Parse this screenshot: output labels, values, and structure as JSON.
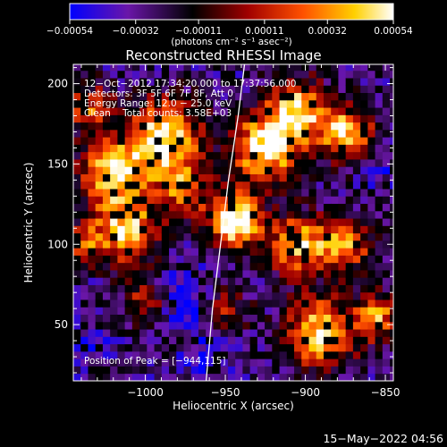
{
  "chart_data": {
    "type": "heatmap",
    "title": "Reconstructed RHESSI Image",
    "xlabel": "Heliocentric X (arcsec)",
    "ylabel": "Heliocentric Y (arcsec)",
    "xlim": [
      -1045,
      -845
    ],
    "ylim": [
      15,
      212
    ],
    "xticks": [
      -1000,
      -950,
      -900,
      -850
    ],
    "xtick_labels": [
      "−1000",
      "−950",
      "−900",
      "−850"
    ],
    "yticks": [
      50,
      100,
      150,
      200
    ],
    "ytick_labels": [
      "50",
      "100",
      "150",
      "200"
    ],
    "colorbar": {
      "ticks": [
        -0.00054,
        -0.00032,
        -0.00011,
        0.00011,
        0.00032,
        0.00054
      ],
      "tick_labels": [
        "−0.00054",
        "−0.00032",
        "−0.00011",
        "0.00011",
        "0.00032",
        "0.00054"
      ],
      "unit_label": "(photons cm⁻² s⁻¹ asec⁻²)",
      "range": [
        -0.00054,
        0.00054
      ],
      "colors": [
        "#0000ff",
        "#6a16a8",
        "#000000",
        "#a00000",
        "#ff5000",
        "#ffd000",
        "#ffffff"
      ]
    },
    "annotations": [
      "12−Oct−2012 17:34:20.000 to 17:37:56.000",
      "Detectors: 3F 5F 6F 7F 8F, Att 0",
      "Energy Range: 12.0 − 25.0 keV",
      "Clean    Total counts: 3.58E+03"
    ],
    "peak_label": "Position of Peak = [−944,115]",
    "peak": {
      "x": -944,
      "y": 115
    },
    "limb_curve": [
      [
        -962,
        15
      ],
      [
        -958,
        60
      ],
      [
        -953,
        100
      ],
      [
        -948,
        140
      ],
      [
        -942,
        180
      ],
      [
        -938,
        212
      ]
    ],
    "date_stamp": "15−May−2022 04:56",
    "grid": false,
    "hot_blobs": [
      {
        "x": -1020,
        "y": 145,
        "r": 22,
        "a": 0.8
      },
      {
        "x": -1012,
        "y": 108,
        "r": 20,
        "a": 0.75
      },
      {
        "x": -988,
        "y": 168,
        "r": 22,
        "a": 0.85
      },
      {
        "x": -975,
        "y": 135,
        "r": 18,
        "a": 0.55
      },
      {
        "x": -1035,
        "y": 185,
        "r": 15,
        "a": 0.5
      },
      {
        "x": -944,
        "y": 115,
        "r": 16,
        "a": 1.0
      },
      {
        "x": -925,
        "y": 160,
        "r": 22,
        "a": 0.85
      },
      {
        "x": -905,
        "y": 185,
        "r": 18,
        "a": 0.75
      },
      {
        "x": -875,
        "y": 170,
        "r": 18,
        "a": 0.7
      },
      {
        "x": -905,
        "y": 100,
        "r": 18,
        "a": 0.75
      },
      {
        "x": -875,
        "y": 100,
        "r": 16,
        "a": 0.65
      },
      {
        "x": -890,
        "y": 45,
        "r": 22,
        "a": 0.8
      },
      {
        "x": -855,
        "y": 55,
        "r": 14,
        "a": 0.6
      },
      {
        "x": -950,
        "y": 60,
        "r": 14,
        "a": 0.4
      },
      {
        "x": -1000,
        "y": 65,
        "r": 14,
        "a": 0.45
      },
      {
        "x": -1040,
        "y": 100,
        "r": 12,
        "a": 0.5
      }
    ],
    "cold_blobs": [
      {
        "x": -975,
        "y": 65,
        "r": 18,
        "a": 0.7
      },
      {
        "x": -960,
        "y": 30,
        "r": 14,
        "a": 0.45
      },
      {
        "x": -1035,
        "y": 40,
        "r": 12,
        "a": 0.35
      },
      {
        "x": -855,
        "y": 145,
        "r": 10,
        "a": 0.35
      }
    ]
  }
}
